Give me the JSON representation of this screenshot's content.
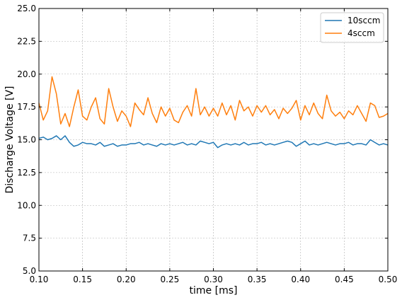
{
  "chart_data": {
    "type": "line",
    "title": "",
    "xlabel": "time [ms]",
    "ylabel": "Discharge Voltage [V]",
    "xlim": [
      0.1,
      0.5
    ],
    "ylim": [
      5.0,
      25.0
    ],
    "grid": true,
    "legend_position": "top-right",
    "x_ticks": [
      "0.10",
      "0.15",
      "0.20",
      "0.25",
      "0.30",
      "0.35",
      "0.40",
      "0.45",
      "0.50"
    ],
    "y_ticks": [
      "5.0",
      "7.5",
      "10.0",
      "12.5",
      "15.0",
      "17.5",
      "20.0",
      "22.5",
      "25.0"
    ],
    "x": [
      0.1,
      0.105,
      0.11,
      0.115,
      0.12,
      0.125,
      0.13,
      0.135,
      0.14,
      0.145,
      0.15,
      0.155,
      0.16,
      0.165,
      0.17,
      0.175,
      0.18,
      0.185,
      0.19,
      0.195,
      0.2,
      0.205,
      0.21,
      0.215,
      0.22,
      0.225,
      0.23,
      0.235,
      0.24,
      0.245,
      0.25,
      0.255,
      0.26,
      0.265,
      0.27,
      0.275,
      0.28,
      0.285,
      0.29,
      0.295,
      0.3,
      0.305,
      0.31,
      0.315,
      0.32,
      0.325,
      0.33,
      0.335,
      0.34,
      0.345,
      0.35,
      0.355,
      0.36,
      0.365,
      0.37,
      0.375,
      0.38,
      0.385,
      0.39,
      0.395,
      0.4,
      0.405,
      0.41,
      0.415,
      0.42,
      0.425,
      0.43,
      0.435,
      0.44,
      0.445,
      0.45,
      0.455,
      0.46,
      0.465,
      0.47,
      0.475,
      0.48,
      0.485,
      0.49,
      0.495,
      0.5
    ],
    "series": [
      {
        "name": "10sccm",
        "color": "#1f77b4",
        "values": [
          15.1,
          15.2,
          15.0,
          15.1,
          15.3,
          15.0,
          15.3,
          14.8,
          14.5,
          14.6,
          14.8,
          14.7,
          14.7,
          14.6,
          14.8,
          14.5,
          14.6,
          14.7,
          14.5,
          14.6,
          14.6,
          14.7,
          14.7,
          14.8,
          14.6,
          14.7,
          14.6,
          14.5,
          14.7,
          14.6,
          14.7,
          14.6,
          14.7,
          14.8,
          14.6,
          14.7,
          14.6,
          14.9,
          14.8,
          14.7,
          14.8,
          14.4,
          14.6,
          14.7,
          14.6,
          14.7,
          14.6,
          14.8,
          14.6,
          14.7,
          14.7,
          14.8,
          14.6,
          14.7,
          14.6,
          14.7,
          14.8,
          14.9,
          14.8,
          14.5,
          14.7,
          14.9,
          14.6,
          14.7,
          14.6,
          14.7,
          14.8,
          14.7,
          14.6,
          14.7,
          14.7,
          14.8,
          14.6,
          14.7,
          14.7,
          14.6,
          15.0,
          14.8,
          14.6,
          14.7,
          14.6
        ]
      },
      {
        "name": "4sccm",
        "color": "#ff7f0e",
        "values": [
          17.8,
          16.5,
          17.2,
          19.8,
          18.5,
          16.2,
          17.0,
          16.0,
          17.5,
          18.8,
          16.8,
          16.5,
          17.5,
          18.2,
          16.6,
          16.2,
          18.9,
          17.5,
          16.4,
          17.2,
          16.8,
          16.0,
          17.8,
          17.3,
          16.9,
          18.2,
          17.0,
          16.3,
          17.5,
          16.8,
          17.4,
          16.5,
          16.3,
          17.1,
          17.6,
          16.8,
          18.9,
          16.9,
          17.5,
          16.8,
          17.4,
          16.8,
          17.8,
          16.9,
          17.6,
          16.5,
          18.0,
          17.2,
          17.5,
          16.8,
          17.6,
          17.1,
          17.6,
          16.9,
          17.3,
          16.6,
          17.4,
          17.0,
          17.4,
          18.0,
          16.5,
          17.6,
          16.9,
          17.8,
          17.0,
          16.6,
          18.4,
          17.2,
          16.8,
          17.1,
          16.6,
          17.2,
          16.9,
          17.6,
          17.0,
          16.4,
          17.8,
          17.6,
          16.7,
          16.8,
          17.0
        ]
      }
    ]
  }
}
